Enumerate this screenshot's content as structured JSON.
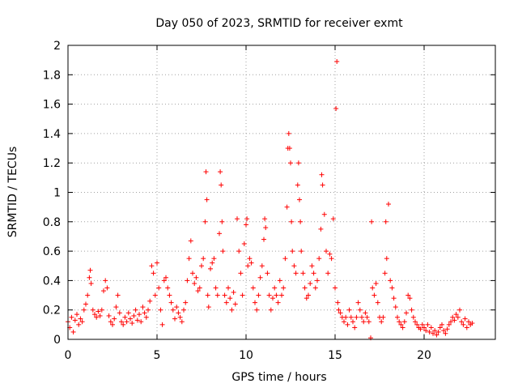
{
  "chart_data": {
    "type": "scatter",
    "title": "Day 050 of 2023, SRMTID for receiver exmt",
    "xlabel": "GPS time / hours",
    "ylabel": "SRMTID / TECUs",
    "xlim": [
      0,
      24
    ],
    "ylim": [
      0,
      2
    ],
    "grid": true,
    "marker": "+",
    "series_color": "#ff0000",
    "x_ticks": [
      0,
      5,
      10,
      15,
      20
    ],
    "x_tick_labels": [
      "0",
      "5",
      "10",
      "15",
      "20"
    ],
    "y_ticks": [
      0,
      0.2,
      0.4,
      0.6,
      0.8,
      1,
      1.2,
      1.4,
      1.6,
      1.8,
      2
    ],
    "y_tick_labels": [
      "0",
      "0.2",
      "0.4",
      "0.6",
      "0.8",
      "1",
      "1.2",
      "1.4",
      "1.6",
      "1.8",
      "2"
    ],
    "series": [
      {
        "name": "SRMTID",
        "points": [
          [
            0.0,
            0.12
          ],
          [
            0.1,
            0.08
          ],
          [
            0.2,
            0.15
          ],
          [
            0.3,
            0.05
          ],
          [
            0.4,
            0.13
          ],
          [
            0.5,
            0.17
          ],
          [
            0.6,
            0.1
          ],
          [
            0.7,
            0.14
          ],
          [
            0.8,
            0.12
          ],
          [
            0.9,
            0.2
          ],
          [
            1.0,
            0.24
          ],
          [
            1.1,
            0.3
          ],
          [
            1.2,
            0.42
          ],
          [
            1.25,
            0.47
          ],
          [
            1.3,
            0.38
          ],
          [
            1.4,
            0.2
          ],
          [
            1.5,
            0.17
          ],
          [
            1.6,
            0.15
          ],
          [
            1.7,
            0.19
          ],
          [
            1.8,
            0.16
          ],
          [
            1.9,
            0.2
          ],
          [
            2.0,
            0.33
          ],
          [
            2.1,
            0.4
          ],
          [
            2.2,
            0.35
          ],
          [
            2.3,
            0.16
          ],
          [
            2.4,
            0.12
          ],
          [
            2.5,
            0.1
          ],
          [
            2.6,
            0.14
          ],
          [
            2.7,
            0.22
          ],
          [
            2.8,
            0.3
          ],
          [
            2.9,
            0.18
          ],
          [
            3.0,
            0.12
          ],
          [
            3.1,
            0.1
          ],
          [
            3.2,
            0.15
          ],
          [
            3.3,
            0.12
          ],
          [
            3.4,
            0.18
          ],
          [
            3.5,
            0.14
          ],
          [
            3.6,
            0.11
          ],
          [
            3.7,
            0.16
          ],
          [
            3.8,
            0.2
          ],
          [
            3.9,
            0.13
          ],
          [
            4.0,
            0.17
          ],
          [
            4.1,
            0.12
          ],
          [
            4.2,
            0.22
          ],
          [
            4.3,
            0.18
          ],
          [
            4.4,
            0.15
          ],
          [
            4.5,
            0.2
          ],
          [
            4.6,
            0.26
          ],
          [
            4.7,
            0.5
          ],
          [
            4.8,
            0.45
          ],
          [
            4.9,
            0.3
          ],
          [
            5.0,
            0.52
          ],
          [
            5.1,
            0.35
          ],
          [
            5.2,
            0.2
          ],
          [
            5.3,
            0.1
          ],
          [
            5.4,
            0.4
          ],
          [
            5.5,
            0.42
          ],
          [
            5.6,
            0.35
          ],
          [
            5.7,
            0.3
          ],
          [
            5.8,
            0.25
          ],
          [
            5.9,
            0.2
          ],
          [
            6.0,
            0.14
          ],
          [
            6.1,
            0.22
          ],
          [
            6.2,
            0.18
          ],
          [
            6.3,
            0.15
          ],
          [
            6.4,
            0.12
          ],
          [
            6.5,
            0.2
          ],
          [
            6.6,
            0.25
          ],
          [
            6.7,
            0.4
          ],
          [
            6.8,
            0.55
          ],
          [
            6.9,
            0.67
          ],
          [
            7.0,
            0.45
          ],
          [
            7.1,
            0.38
          ],
          [
            7.2,
            0.42
          ],
          [
            7.3,
            0.33
          ],
          [
            7.4,
            0.35
          ],
          [
            7.5,
            0.5
          ],
          [
            7.6,
            0.55
          ],
          [
            7.7,
            0.8
          ],
          [
            7.75,
            1.14
          ],
          [
            7.8,
            0.95
          ],
          [
            7.85,
            0.3
          ],
          [
            7.9,
            0.22
          ],
          [
            8.0,
            0.48
          ],
          [
            8.1,
            0.52
          ],
          [
            8.2,
            0.55
          ],
          [
            8.3,
            0.35
          ],
          [
            8.4,
            0.3
          ],
          [
            8.5,
            0.72
          ],
          [
            8.55,
            1.14
          ],
          [
            8.6,
            1.05
          ],
          [
            8.65,
            0.8
          ],
          [
            8.7,
            0.6
          ],
          [
            8.8,
            0.3
          ],
          [
            8.9,
            0.25
          ],
          [
            9.0,
            0.35
          ],
          [
            9.1,
            0.28
          ],
          [
            9.2,
            0.2
          ],
          [
            9.3,
            0.32
          ],
          [
            9.4,
            0.24
          ],
          [
            9.5,
            0.82
          ],
          [
            9.6,
            0.6
          ],
          [
            9.7,
            0.45
          ],
          [
            9.8,
            0.3
          ],
          [
            9.9,
            0.65
          ],
          [
            10.0,
            0.78
          ],
          [
            10.05,
            0.82
          ],
          [
            10.1,
            0.5
          ],
          [
            10.2,
            0.55
          ],
          [
            10.3,
            0.52
          ],
          [
            10.4,
            0.35
          ],
          [
            10.5,
            0.25
          ],
          [
            10.6,
            0.2
          ],
          [
            10.7,
            0.3
          ],
          [
            10.8,
            0.42
          ],
          [
            10.9,
            0.5
          ],
          [
            11.0,
            0.68
          ],
          [
            11.05,
            0.82
          ],
          [
            11.1,
            0.76
          ],
          [
            11.2,
            0.45
          ],
          [
            11.3,
            0.3
          ],
          [
            11.4,
            0.2
          ],
          [
            11.5,
            0.28
          ],
          [
            11.6,
            0.35
          ],
          [
            11.7,
            0.3
          ],
          [
            11.8,
            0.25
          ],
          [
            11.9,
            0.4
          ],
          [
            12.0,
            0.3
          ],
          [
            12.1,
            0.35
          ],
          [
            12.2,
            0.55
          ],
          [
            12.3,
            0.9
          ],
          [
            12.35,
            1.3
          ],
          [
            12.4,
            1.4
          ],
          [
            12.45,
            1.3
          ],
          [
            12.5,
            1.2
          ],
          [
            12.55,
            0.8
          ],
          [
            12.6,
            0.6
          ],
          [
            12.7,
            0.5
          ],
          [
            12.8,
            0.45
          ],
          [
            12.9,
            1.05
          ],
          [
            12.95,
            1.2
          ],
          [
            13.0,
            0.95
          ],
          [
            13.05,
            0.8
          ],
          [
            13.1,
            0.6
          ],
          [
            13.2,
            0.45
          ],
          [
            13.3,
            0.35
          ],
          [
            13.4,
            0.28
          ],
          [
            13.5,
            0.3
          ],
          [
            13.6,
            0.38
          ],
          [
            13.7,
            0.5
          ],
          [
            13.8,
            0.45
          ],
          [
            13.9,
            0.35
          ],
          [
            14.0,
            0.4
          ],
          [
            14.1,
            0.55
          ],
          [
            14.2,
            0.75
          ],
          [
            14.25,
            1.12
          ],
          [
            14.3,
            1.05
          ],
          [
            14.4,
            0.85
          ],
          [
            14.5,
            0.6
          ],
          [
            14.6,
            0.45
          ],
          [
            14.7,
            0.58
          ],
          [
            14.8,
            0.55
          ],
          [
            14.9,
            0.82
          ],
          [
            15.0,
            0.35
          ],
          [
            15.05,
            1.57
          ],
          [
            15.1,
            1.89
          ],
          [
            15.15,
            0.25
          ],
          [
            15.2,
            0.2
          ],
          [
            15.3,
            0.18
          ],
          [
            15.4,
            0.15
          ],
          [
            15.5,
            0.12
          ],
          [
            15.6,
            0.15
          ],
          [
            15.7,
            0.1
          ],
          [
            15.8,
            0.2
          ],
          [
            15.9,
            0.15
          ],
          [
            16.0,
            0.12
          ],
          [
            16.1,
            0.08
          ],
          [
            16.2,
            0.15
          ],
          [
            16.3,
            0.25
          ],
          [
            16.4,
            0.2
          ],
          [
            16.5,
            0.15
          ],
          [
            16.6,
            0.12
          ],
          [
            16.7,
            0.18
          ],
          [
            16.8,
            0.15
          ],
          [
            16.9,
            0.12
          ],
          [
            17.0,
            0.01
          ],
          [
            17.05,
            0.8
          ],
          [
            17.1,
            0.35
          ],
          [
            17.2,
            0.3
          ],
          [
            17.3,
            0.38
          ],
          [
            17.4,
            0.25
          ],
          [
            17.5,
            0.15
          ],
          [
            17.6,
            0.12
          ],
          [
            17.7,
            0.15
          ],
          [
            17.8,
            0.45
          ],
          [
            17.85,
            0.8
          ],
          [
            17.9,
            0.55
          ],
          [
            18.0,
            0.92
          ],
          [
            18.1,
            0.4
          ],
          [
            18.2,
            0.35
          ],
          [
            18.3,
            0.28
          ],
          [
            18.4,
            0.22
          ],
          [
            18.5,
            0.15
          ],
          [
            18.6,
            0.12
          ],
          [
            18.7,
            0.1
          ],
          [
            18.8,
            0.08
          ],
          [
            18.9,
            0.12
          ],
          [
            19.0,
            0.18
          ],
          [
            19.1,
            0.3
          ],
          [
            19.2,
            0.28
          ],
          [
            19.3,
            0.2
          ],
          [
            19.4,
            0.15
          ],
          [
            19.5,
            0.12
          ],
          [
            19.6,
            0.1
          ],
          [
            19.7,
            0.08
          ],
          [
            19.8,
            0.07
          ],
          [
            19.9,
            0.1
          ],
          [
            20.0,
            0.08
          ],
          [
            20.1,
            0.06
          ],
          [
            20.2,
            0.1
          ],
          [
            20.3,
            0.05
          ],
          [
            20.4,
            0.08
          ],
          [
            20.5,
            0.04
          ],
          [
            20.6,
            0.06
          ],
          [
            20.7,
            0.03
          ],
          [
            20.8,
            0.05
          ],
          [
            20.9,
            0.08
          ],
          [
            21.0,
            0.1
          ],
          [
            21.1,
            0.06
          ],
          [
            21.2,
            0.04
          ],
          [
            21.3,
            0.07
          ],
          [
            21.4,
            0.1
          ],
          [
            21.5,
            0.12
          ],
          [
            21.6,
            0.15
          ],
          [
            21.7,
            0.13
          ],
          [
            21.8,
            0.17
          ],
          [
            21.9,
            0.15
          ],
          [
            22.0,
            0.2
          ],
          [
            22.1,
            0.12
          ],
          [
            22.2,
            0.1
          ],
          [
            22.3,
            0.14
          ],
          [
            22.4,
            0.08
          ],
          [
            22.5,
            0.12
          ],
          [
            22.6,
            0.1
          ],
          [
            22.7,
            0.11
          ]
        ]
      }
    ]
  }
}
